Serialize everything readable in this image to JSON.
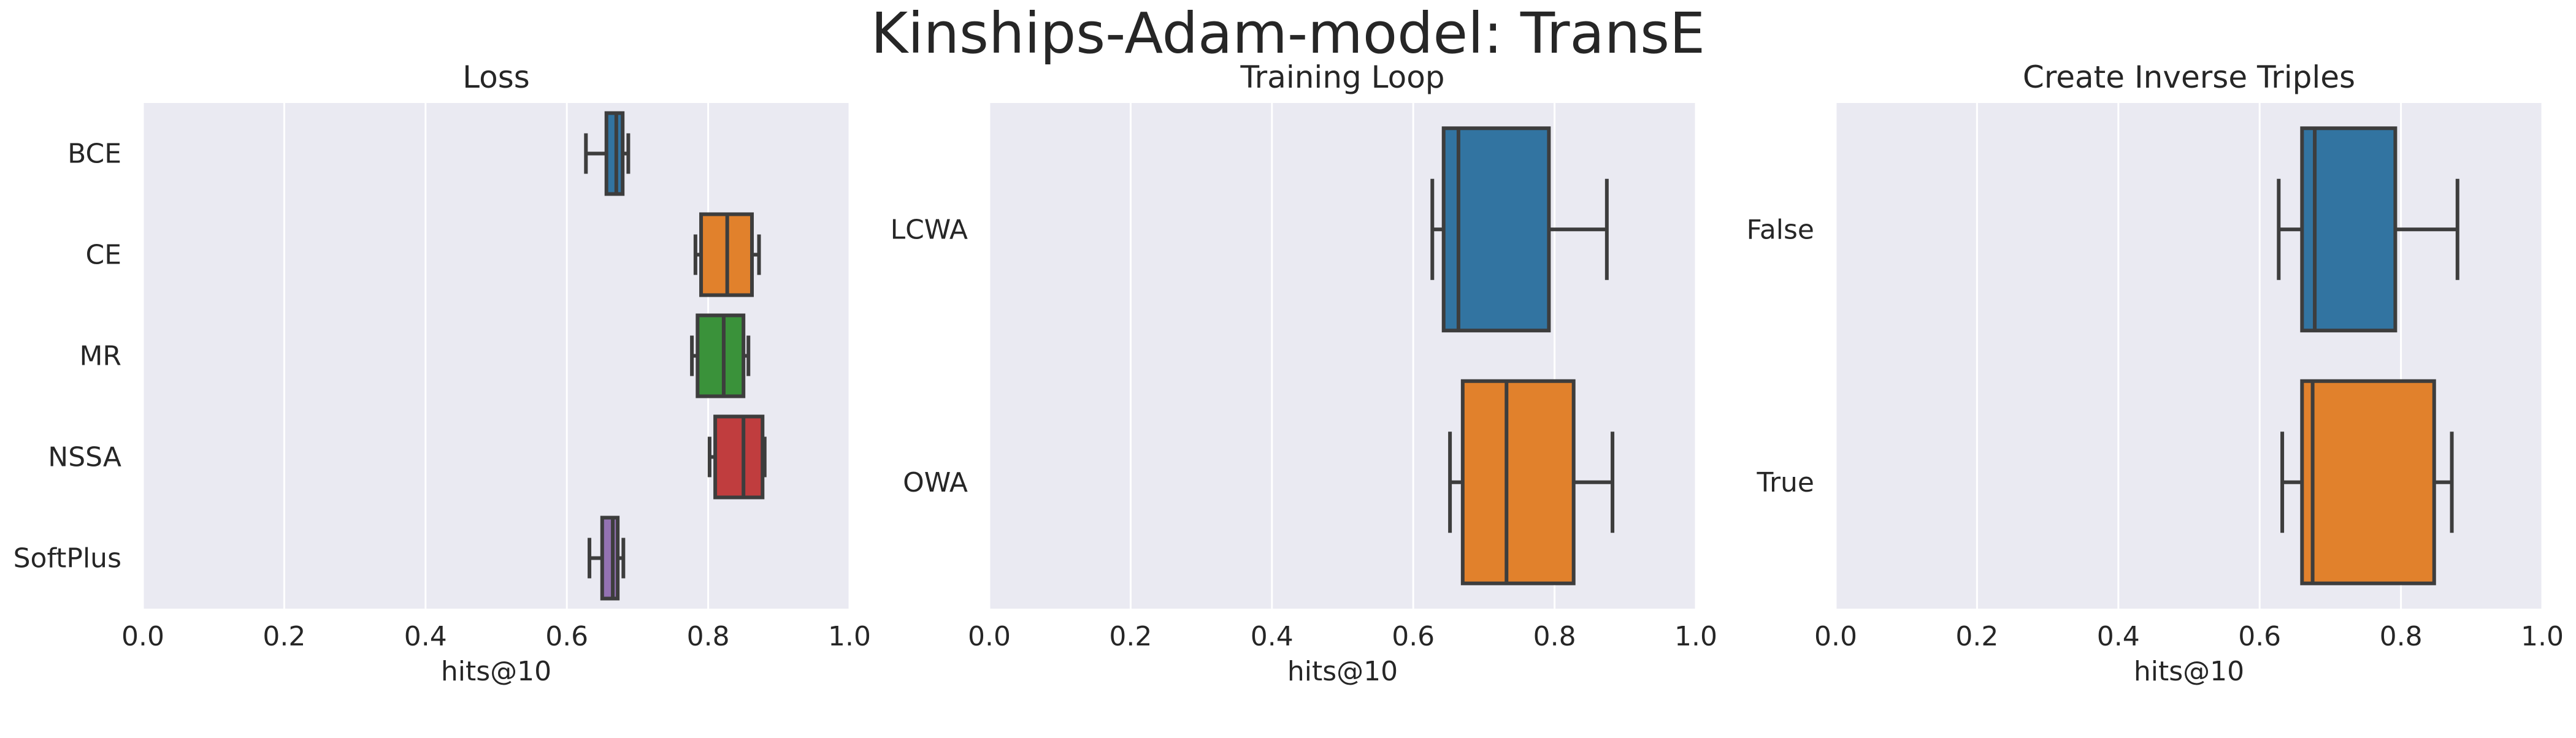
{
  "suptitle": "Kinships-Adam-model: TransE",
  "chart_data": [
    {
      "type": "boxplot",
      "orientation": "horizontal",
      "title": "Loss",
      "xlabel": "hits@10",
      "xlim": [
        0.0,
        1.0
      ],
      "xticks": [
        "0.0",
        "0.2",
        "0.4",
        "0.6",
        "0.8",
        "1.0"
      ],
      "grid": true,
      "categories": [
        "BCE",
        "CE",
        "MR",
        "NSSA",
        "SoftPlus"
      ],
      "boxes": [
        {
          "category": "BCE",
          "whisker_low": 0.627,
          "q1": 0.656,
          "median": 0.67,
          "q3": 0.679,
          "whisker_high": 0.687,
          "color": "#3274a1"
        },
        {
          "category": "CE",
          "whisker_low": 0.782,
          "q1": 0.79,
          "median": 0.827,
          "q3": 0.862,
          "whisker_high": 0.872,
          "color": "#e1812c"
        },
        {
          "category": "MR",
          "whisker_low": 0.777,
          "q1": 0.785,
          "median": 0.822,
          "q3": 0.85,
          "whisker_high": 0.857,
          "color": "#3a923a"
        },
        {
          "category": "NSSA",
          "whisker_low": 0.802,
          "q1": 0.81,
          "median": 0.85,
          "q3": 0.877,
          "whisker_high": 0.88,
          "color": "#c03d3e"
        },
        {
          "category": "SoftPlus",
          "whisker_low": 0.632,
          "q1": 0.65,
          "median": 0.665,
          "q3": 0.672,
          "whisker_high": 0.68,
          "color": "#9372b2"
        }
      ]
    },
    {
      "type": "boxplot",
      "orientation": "horizontal",
      "title": "Training Loop",
      "xlabel": "hits@10",
      "xlim": [
        0.0,
        1.0
      ],
      "xticks": [
        "0.0",
        "0.2",
        "0.4",
        "0.6",
        "0.8",
        "1.0"
      ],
      "grid": true,
      "categories": [
        "LCWA",
        "OWA"
      ],
      "boxes": [
        {
          "category": "LCWA",
          "whisker_low": 0.627,
          "q1": 0.643,
          "median": 0.664,
          "q3": 0.792,
          "whisker_high": 0.874,
          "color": "#3274a1"
        },
        {
          "category": "OWA",
          "whisker_low": 0.652,
          "q1": 0.67,
          "median": 0.732,
          "q3": 0.827,
          "whisker_high": 0.882,
          "color": "#e1812c"
        }
      ]
    },
    {
      "type": "boxplot",
      "orientation": "horizontal",
      "title": "Create Inverse Triples",
      "xlabel": "hits@10",
      "xlim": [
        0.0,
        1.0
      ],
      "xticks": [
        "0.0",
        "0.2",
        "0.4",
        "0.6",
        "0.8",
        "1.0"
      ],
      "grid": true,
      "categories": [
        "False",
        "True"
      ],
      "boxes": [
        {
          "category": "False",
          "whisker_low": 0.627,
          "q1": 0.66,
          "median": 0.678,
          "q3": 0.792,
          "whisker_high": 0.88,
          "color": "#3274a1"
        },
        {
          "category": "True",
          "whisker_low": 0.632,
          "q1": 0.66,
          "median": 0.675,
          "q3": 0.847,
          "whisker_high": 0.872,
          "color": "#e1812c"
        }
      ]
    }
  ]
}
